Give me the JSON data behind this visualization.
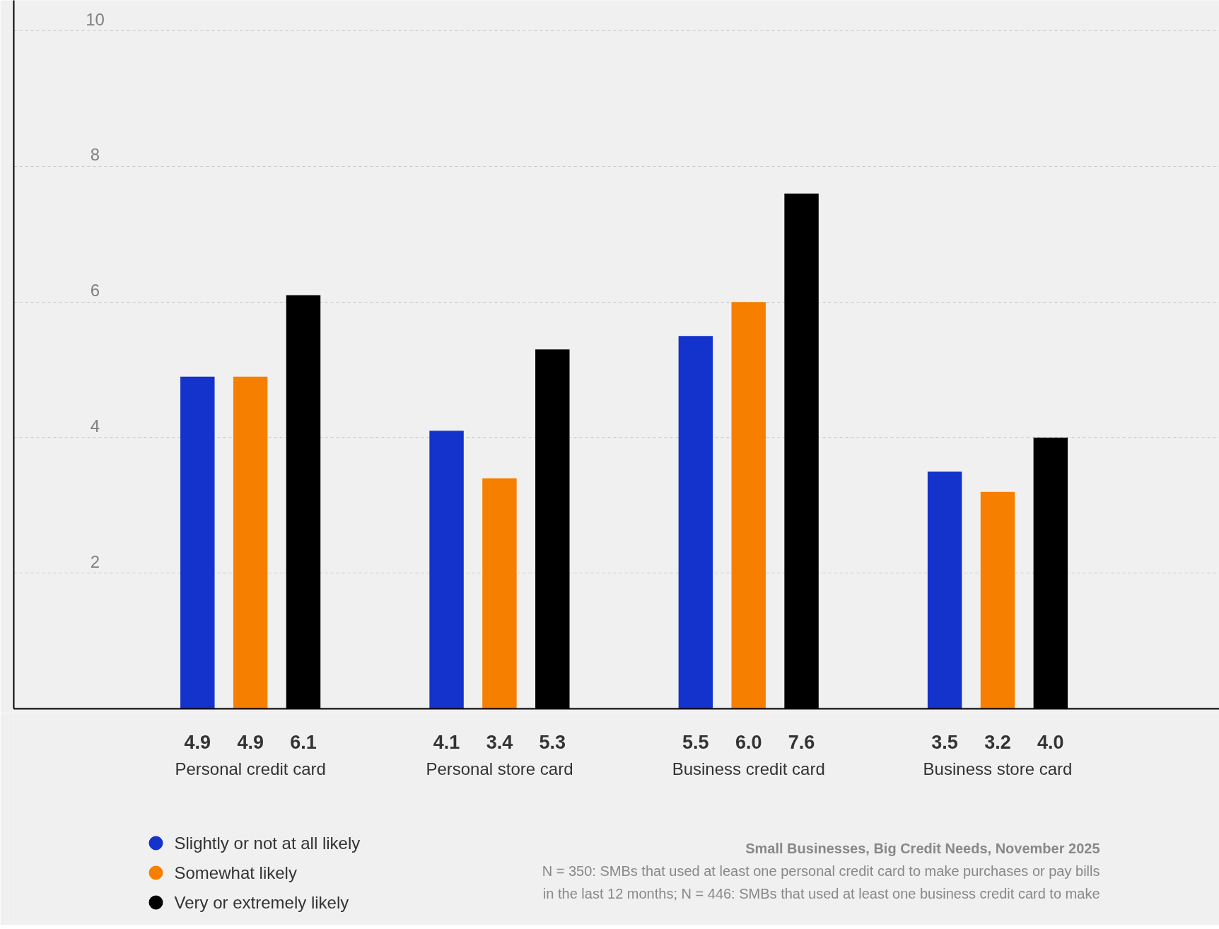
{
  "chart_data": {
    "type": "bar",
    "categories": [
      "Personal credit card",
      "Personal store card",
      "Business credit card",
      "Business store card"
    ],
    "series": [
      {
        "name": "Slightly or not at all likely",
        "color": "#1432cc",
        "values": [
          4.9,
          4.1,
          5.5,
          3.5
        ],
        "value_labels": [
          "4.9",
          "4.1",
          "5.5",
          "3.5"
        ]
      },
      {
        "name": "Somewhat likely",
        "color": "#f77f00",
        "values": [
          4.9,
          3.4,
          6.0,
          3.2
        ],
        "value_labels": [
          "4.9",
          "3.4",
          "6.0",
          "3.2"
        ]
      },
      {
        "name": "Very or extremely likely",
        "color": "#000000",
        "values": [
          6.1,
          5.3,
          7.6,
          4.0
        ],
        "value_labels": [
          "6.1",
          "5.3",
          "7.6",
          "4.0"
        ]
      }
    ],
    "ylim": [
      0,
      10.45
    ],
    "yticks": [
      {
        "value": 0,
        "label": null
      },
      2,
      4,
      6,
      8,
      10
    ],
    "grid": "y",
    "legend": "bottom left",
    "annotations": [
      "Small Businesses, Big Credit Needs, November 2025",
      "N = 350: SMBs that used at least one personal credit card to make purchases or pay bills",
      "in the last 12 months; N = 446: SMBs that used at least one business credit card to make"
    ]
  }
}
